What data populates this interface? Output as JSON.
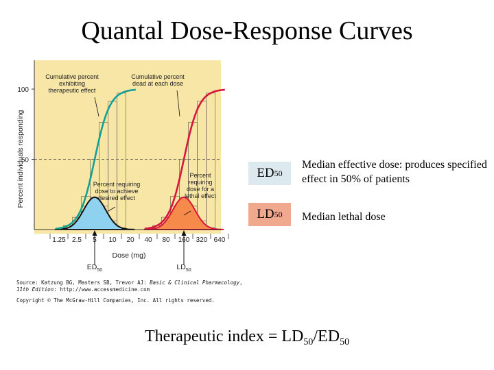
{
  "slide": {
    "title": "Quantal Dose-Response Curves",
    "ed": {
      "abbr": "ED",
      "sub": "50",
      "definition": "Median effective dose: produces specified effect in 50% of patients"
    },
    "ld": {
      "abbr": "LD",
      "sub": "50",
      "definition": "Median lethal dose"
    },
    "therapeutic_index": {
      "prefix": "Therapeutic index = LD",
      "sub1": "50",
      "mid": "/ED",
      "sub2": "50"
    },
    "source": {
      "line1_a": "Source: Katzung BG, Masters SB, Trevor AJ: ",
      "line1_b": "Basic & Clinical Pharmacology",
      "line1_c": ",",
      "line2_a": "11th Edition",
      "line2_b": ": http://www.accessmedicine.com"
    },
    "copyright": "Copyright © The McGraw-Hill Companies, Inc. All rights reserved."
  },
  "chart_data": {
    "type": "line",
    "ylabel": "Percent individuals responding",
    "xlabel": "Dose (mg)",
    "yticks": [
      "50",
      "100"
    ],
    "ylim": [
      0,
      100
    ],
    "x_scale": "log2",
    "x": [
      "1.25",
      "2.5",
      "5",
      "10",
      "20",
      "40",
      "80",
      "160",
      "320",
      "640"
    ],
    "series": [
      {
        "id": "therapeutic-cumulative",
        "values": [
          3,
          12,
          45,
          85,
          99,
          100,
          100,
          100,
          100,
          100
        ]
      },
      {
        "id": "therapeutic-percent",
        "values": [
          2,
          12,
          23,
          12,
          2,
          0,
          0,
          0,
          0,
          0
        ]
      },
      {
        "id": "lethal-cumulative",
        "values": [
          0,
          0,
          0,
          0,
          0,
          3,
          15,
          50,
          88,
          100
        ]
      },
      {
        "id": "lethal-percent",
        "values": [
          0,
          0,
          0,
          0,
          0,
          2,
          12,
          23,
          12,
          2
        ]
      }
    ],
    "annotations": [
      {
        "id": "ann-cum-ther",
        "lines": [
          "Cumulative percent",
          "exhibiting",
          "therapeutic effect"
        ]
      },
      {
        "id": "ann-cum-dead",
        "lines": [
          "Cumulative percent",
          "dead at each dose"
        ]
      },
      {
        "id": "ann-pct-ther",
        "lines": [
          "Percent requiring",
          "dose to achieve",
          "desired effect"
        ]
      },
      {
        "id": "ann-pct-lethal",
        "lines": [
          "Percent",
          "requiring",
          "dose for a",
          "lethal effect"
        ]
      }
    ],
    "markers": [
      {
        "id": "ed50-marker",
        "label": "ED",
        "sub": "50",
        "at_x": 5
      },
      {
        "id": "ld50-marker",
        "label": "LD",
        "sub": "50",
        "at_x": 160
      }
    ],
    "colors": {
      "panel": "#f7e6a6",
      "cumulative_therapeutic": "#13a095",
      "cumulative_lethal": "#d8143a",
      "fill_therapeutic": "#8fd2ef",
      "fill_lethal": "#f58a4a",
      "grid": "#9a8f70"
    }
  }
}
